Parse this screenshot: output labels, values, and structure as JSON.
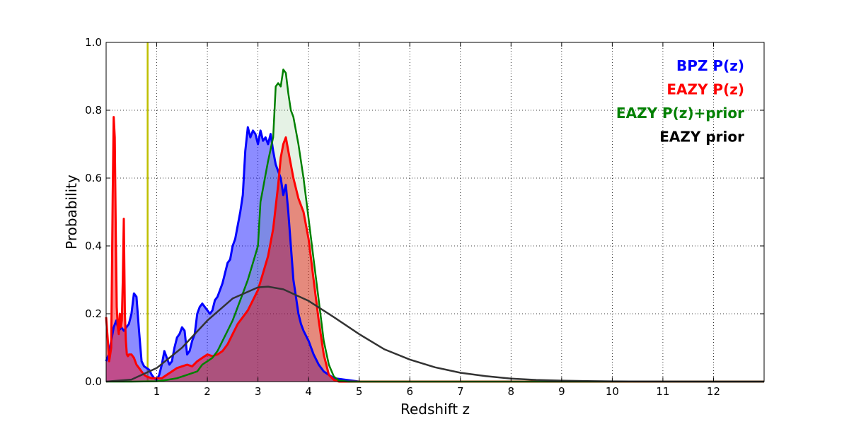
{
  "chart_data": {
    "type": "area",
    "title": "",
    "xlabel": "Redshift z",
    "ylabel": "Probability",
    "xlim": [
      0,
      13
    ],
    "ylim": [
      0,
      1.0
    ],
    "xticks": [
      1,
      2,
      3,
      4,
      5,
      6,
      7,
      8,
      9,
      10,
      11,
      12
    ],
    "xtick_labels": [
      "1",
      "2",
      "3",
      "4",
      "5",
      "6",
      "7",
      "8",
      "9",
      "10",
      "11",
      "12"
    ],
    "yticks": [
      0,
      0.2,
      0.4,
      0.6,
      0.8,
      1.0
    ],
    "ytick_labels": [
      "0.0",
      "0.2",
      "0.4",
      "0.6",
      "0.8",
      "1.0"
    ],
    "grid": true,
    "legend_position": "top-right",
    "vertical_line": {
      "x": 0.82,
      "color": "#bfbf00"
    },
    "series": [
      {
        "name": "BPZ P(z)",
        "color": "#0000ff",
        "fill": true,
        "x": [
          0,
          0.05,
          0.1,
          0.15,
          0.2,
          0.25,
          0.3,
          0.35,
          0.4,
          0.45,
          0.5,
          0.55,
          0.6,
          0.65,
          0.7,
          0.75,
          0.8,
          0.85,
          0.9,
          0.95,
          1.0,
          1.05,
          1.1,
          1.15,
          1.2,
          1.25,
          1.3,
          1.35,
          1.4,
          1.45,
          1.5,
          1.55,
          1.6,
          1.65,
          1.7,
          1.75,
          1.8,
          1.85,
          1.9,
          1.95,
          2.0,
          2.05,
          2.1,
          2.15,
          2.2,
          2.25,
          2.3,
          2.35,
          2.4,
          2.45,
          2.5,
          2.55,
          2.6,
          2.65,
          2.7,
          2.75,
          2.8,
          2.85,
          2.9,
          2.95,
          3.0,
          3.05,
          3.1,
          3.15,
          3.2,
          3.25,
          3.3,
          3.35,
          3.4,
          3.45,
          3.5,
          3.55,
          3.6,
          3.65,
          3.7,
          3.75,
          3.8,
          3.85,
          3.9,
          4.0,
          4.1,
          4.2,
          4.3,
          4.5,
          5.0,
          13.0
        ],
        "values": [
          0.06,
          0.08,
          0.12,
          0.16,
          0.18,
          0.15,
          0.16,
          0.15,
          0.16,
          0.17,
          0.2,
          0.26,
          0.25,
          0.15,
          0.06,
          0.045,
          0.04,
          0.035,
          0.02,
          0.01,
          0.005,
          0.02,
          0.05,
          0.09,
          0.07,
          0.05,
          0.06,
          0.1,
          0.13,
          0.14,
          0.16,
          0.15,
          0.08,
          0.09,
          0.12,
          0.14,
          0.2,
          0.22,
          0.23,
          0.22,
          0.21,
          0.2,
          0.21,
          0.24,
          0.25,
          0.27,
          0.29,
          0.32,
          0.35,
          0.36,
          0.4,
          0.42,
          0.46,
          0.5,
          0.55,
          0.68,
          0.75,
          0.72,
          0.74,
          0.73,
          0.7,
          0.74,
          0.71,
          0.72,
          0.7,
          0.73,
          0.68,
          0.64,
          0.62,
          0.6,
          0.55,
          0.58,
          0.5,
          0.4,
          0.3,
          0.25,
          0.2,
          0.17,
          0.15,
          0.12,
          0.08,
          0.05,
          0.03,
          0.01,
          0.0,
          0.0
        ]
      },
      {
        "name": "EAZY P(z)",
        "color": "#ff0000",
        "fill": true,
        "x": [
          0,
          0.03,
          0.06,
          0.1,
          0.13,
          0.15,
          0.17,
          0.19,
          0.21,
          0.23,
          0.25,
          0.27,
          0.29,
          0.31,
          0.33,
          0.35,
          0.37,
          0.39,
          0.41,
          0.43,
          0.45,
          0.5,
          0.55,
          0.6,
          0.65,
          0.7,
          0.75,
          0.8,
          0.9,
          1.0,
          1.1,
          1.2,
          1.3,
          1.4,
          1.5,
          1.6,
          1.7,
          1.8,
          1.9,
          2.0,
          2.1,
          2.2,
          2.3,
          2.4,
          2.5,
          2.6,
          2.7,
          2.8,
          2.9,
          3.0,
          3.1,
          3.2,
          3.3,
          3.4,
          3.45,
          3.5,
          3.55,
          3.6,
          3.7,
          3.8,
          3.9,
          4.0,
          4.1,
          4.2,
          4.3,
          4.4,
          4.5,
          4.6,
          4.8,
          13.0
        ],
        "values": [
          0.19,
          0.13,
          0.06,
          0.1,
          0.55,
          0.78,
          0.72,
          0.45,
          0.22,
          0.16,
          0.14,
          0.2,
          0.16,
          0.18,
          0.3,
          0.48,
          0.2,
          0.12,
          0.08,
          0.075,
          0.08,
          0.08,
          0.07,
          0.05,
          0.04,
          0.03,
          0.02,
          0.015,
          0.01,
          0.01,
          0.01,
          0.02,
          0.03,
          0.04,
          0.045,
          0.05,
          0.045,
          0.06,
          0.07,
          0.08,
          0.075,
          0.08,
          0.09,
          0.11,
          0.14,
          0.17,
          0.19,
          0.21,
          0.24,
          0.27,
          0.32,
          0.37,
          0.45,
          0.58,
          0.66,
          0.7,
          0.72,
          0.68,
          0.6,
          0.54,
          0.5,
          0.42,
          0.3,
          0.18,
          0.08,
          0.02,
          0.005,
          0.0,
          0.0,
          0.0
        ]
      },
      {
        "name": "EAZY P(z)+prior",
        "color": "#008000",
        "fill": true,
        "x": [
          0,
          0.5,
          1.0,
          1.2,
          1.4,
          1.6,
          1.8,
          1.9,
          2.0,
          2.1,
          2.2,
          2.3,
          2.4,
          2.5,
          2.6,
          2.7,
          2.8,
          2.9,
          3.0,
          3.05,
          3.1,
          3.15,
          3.2,
          3.3,
          3.35,
          3.4,
          3.45,
          3.5,
          3.55,
          3.6,
          3.65,
          3.7,
          3.8,
          3.9,
          4.0,
          4.1,
          4.2,
          4.3,
          4.4,
          4.5,
          4.6,
          4.8,
          13.0
        ],
        "values": [
          0.0,
          0.0,
          0.001,
          0.005,
          0.01,
          0.02,
          0.03,
          0.05,
          0.06,
          0.07,
          0.09,
          0.12,
          0.15,
          0.18,
          0.22,
          0.26,
          0.3,
          0.35,
          0.4,
          0.53,
          0.57,
          0.61,
          0.65,
          0.72,
          0.87,
          0.88,
          0.87,
          0.92,
          0.91,
          0.85,
          0.8,
          0.78,
          0.7,
          0.6,
          0.48,
          0.36,
          0.24,
          0.12,
          0.05,
          0.015,
          0.003,
          0.0,
          0.0
        ]
      },
      {
        "name": "EAZY prior",
        "color": "#333333",
        "fill": false,
        "x": [
          0,
          0.5,
          1.0,
          1.5,
          2.0,
          2.5,
          3.0,
          3.2,
          3.5,
          4.0,
          4.5,
          5.0,
          5.5,
          6.0,
          6.5,
          7.0,
          7.5,
          8.0,
          8.5,
          9.0,
          9.5,
          10.0,
          11.0,
          12.0,
          13.0
        ],
        "values": [
          0.0,
          0.006,
          0.04,
          0.1,
          0.18,
          0.245,
          0.278,
          0.28,
          0.272,
          0.238,
          0.19,
          0.14,
          0.095,
          0.065,
          0.042,
          0.026,
          0.016,
          0.009,
          0.005,
          0.003,
          0.0015,
          0.0008,
          0.0002,
          5e-05,
          0.0
        ]
      }
    ]
  }
}
